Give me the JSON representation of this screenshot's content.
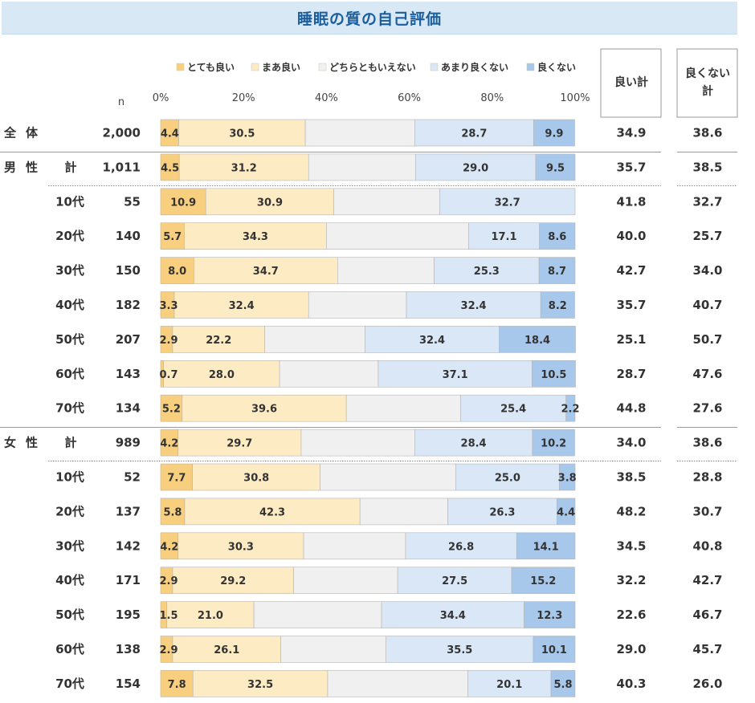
{
  "chart_data": {
    "type": "bar",
    "stacked": "100%",
    "orientation": "horizontal",
    "title": "睡眠の質の自己評価",
    "x_ticks": [
      "0%",
      "20%",
      "40%",
      "60%",
      "80%",
      "100%"
    ],
    "n_header": "n",
    "summary_headers": [
      "良い計",
      "良くない計"
    ],
    "legend": [
      "とても良い",
      "まあ良い",
      "どちらともいえない",
      "あまり良くない",
      "良くない"
    ],
    "colors": [
      "#f7cf7e",
      "#fdebc3",
      "#f0f0f0",
      "#d9e7f6",
      "#a7c7eb"
    ],
    "rows": [
      {
        "group": "全　体",
        "label": "",
        "n": "2,000",
        "values": [
          4.4,
          30.5,
          26.4,
          28.7,
          9.9
        ],
        "labels": [
          "4.4",
          "30.5",
          "",
          "28.7",
          "9.9"
        ],
        "good": "34.9",
        "bad": "38.6"
      },
      {
        "group": "男　性",
        "label": "計",
        "n": "1,011",
        "values": [
          4.5,
          31.2,
          25.8,
          29.0,
          9.5
        ],
        "labels": [
          "4.5",
          "31.2",
          "",
          "29.0",
          "9.5"
        ],
        "good": "35.7",
        "bad": "38.5"
      },
      {
        "group": "",
        "label": "10代",
        "n": "55",
        "values": [
          10.9,
          30.9,
          25.5,
          32.7,
          0
        ],
        "labels": [
          "10.9",
          "30.9",
          "",
          "32.7",
          ""
        ],
        "good": "41.8",
        "bad": "32.7"
      },
      {
        "group": "",
        "label": "20代",
        "n": "140",
        "values": [
          5.7,
          34.3,
          34.3,
          17.1,
          8.6
        ],
        "labels": [
          "5.7",
          "34.3",
          "",
          "17.1",
          "8.6"
        ],
        "good": "40.0",
        "bad": "25.7"
      },
      {
        "group": "",
        "label": "30代",
        "n": "150",
        "values": [
          8.0,
          34.7,
          23.3,
          25.3,
          8.7
        ],
        "labels": [
          "8.0",
          "34.7",
          "",
          "25.3",
          "8.7"
        ],
        "good": "42.7",
        "bad": "34.0"
      },
      {
        "group": "",
        "label": "40代",
        "n": "182",
        "values": [
          3.3,
          32.4,
          23.6,
          32.4,
          8.2
        ],
        "labels": [
          "3.3",
          "32.4",
          "",
          "32.4",
          "8.2"
        ],
        "good": "35.7",
        "bad": "40.7"
      },
      {
        "group": "",
        "label": "50代",
        "n": "207",
        "values": [
          2.9,
          22.2,
          24.2,
          32.4,
          18.4
        ],
        "labels": [
          "2.9",
          "22.2",
          "",
          "32.4",
          "18.4"
        ],
        "good": "25.1",
        "bad": "50.7"
      },
      {
        "group": "",
        "label": "60代",
        "n": "143",
        "values": [
          0.7,
          28.0,
          23.8,
          37.1,
          10.5
        ],
        "labels": [
          "0.7",
          "28.0",
          "",
          "37.1",
          "10.5"
        ],
        "good": "28.7",
        "bad": "47.6"
      },
      {
        "group": "",
        "label": "70代",
        "n": "134",
        "values": [
          5.2,
          39.6,
          27.6,
          25.4,
          2.2
        ],
        "labels": [
          "5.2",
          "39.6",
          "",
          "25.4",
          "2.2"
        ],
        "good": "44.8",
        "bad": "27.6"
      },
      {
        "group": "女　性",
        "label": "計",
        "n": "989",
        "values": [
          4.2,
          29.7,
          27.4,
          28.4,
          10.2
        ],
        "labels": [
          "4.2",
          "29.7",
          "",
          "28.4",
          "10.2"
        ],
        "good": "34.0",
        "bad": "38.6"
      },
      {
        "group": "",
        "label": "10代",
        "n": "52",
        "values": [
          7.7,
          30.8,
          32.7,
          25.0,
          3.8
        ],
        "labels": [
          "7.7",
          "30.8",
          "",
          "25.0",
          "3.8"
        ],
        "good": "38.5",
        "bad": "28.8"
      },
      {
        "group": "",
        "label": "20代",
        "n": "137",
        "values": [
          5.8,
          42.3,
          21.2,
          26.3,
          4.4
        ],
        "labels": [
          "5.8",
          "42.3",
          "",
          "26.3",
          "4.4"
        ],
        "good": "48.2",
        "bad": "30.7"
      },
      {
        "group": "",
        "label": "30代",
        "n": "142",
        "values": [
          4.2,
          30.3,
          24.6,
          26.8,
          14.1
        ],
        "labels": [
          "4.2",
          "30.3",
          "",
          "26.8",
          "14.1"
        ],
        "good": "34.5",
        "bad": "40.8"
      },
      {
        "group": "",
        "label": "40代",
        "n": "171",
        "values": [
          2.9,
          29.2,
          25.1,
          27.5,
          15.2
        ],
        "labels": [
          "2.9",
          "29.2",
          "",
          "27.5",
          "15.2"
        ],
        "good": "32.2",
        "bad": "42.7"
      },
      {
        "group": "",
        "label": "50代",
        "n": "195",
        "values": [
          1.5,
          21.0,
          30.8,
          34.4,
          12.3
        ],
        "labels": [
          "1.5",
          "21.0",
          "",
          "34.4",
          "12.3"
        ],
        "good": "22.6",
        "bad": "46.7"
      },
      {
        "group": "",
        "label": "60代",
        "n": "138",
        "values": [
          2.9,
          26.1,
          25.4,
          35.5,
          10.1
        ],
        "labels": [
          "2.9",
          "26.1",
          "",
          "35.5",
          "10.1"
        ],
        "good": "29.0",
        "bad": "45.7"
      },
      {
        "group": "",
        "label": "70代",
        "n": "154",
        "values": [
          7.8,
          32.5,
          33.8,
          20.1,
          5.8
        ],
        "labels": [
          "7.8",
          "32.5",
          "",
          "20.1",
          "5.8"
        ],
        "good": "40.3",
        "bad": "26.0"
      }
    ]
  }
}
